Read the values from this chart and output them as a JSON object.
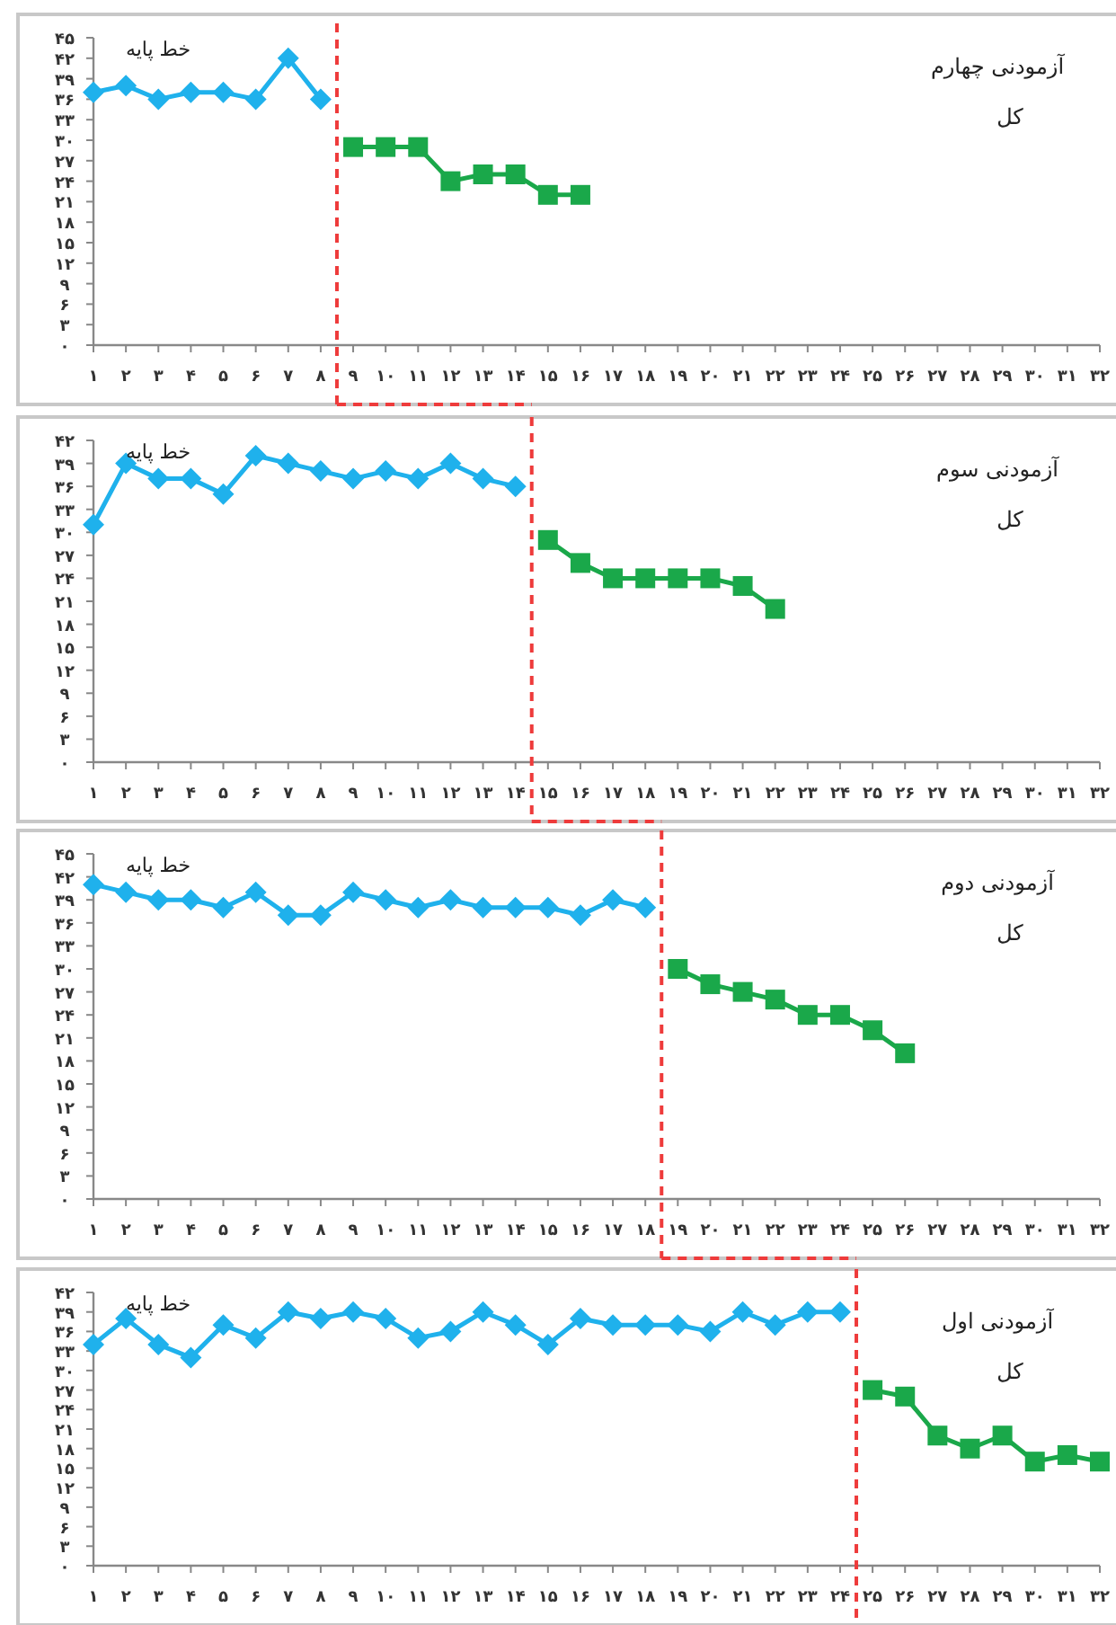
{
  "chart_data": [
    {
      "type": "line",
      "title": "آزمودنی چهارم",
      "subtitle": "کل",
      "annotations": [
        "خط پایه"
      ],
      "xlim": [
        1,
        32
      ],
      "ylim": [
        0,
        45
      ],
      "xticks": [
        {
          "value": 1,
          "label": "۱"
        },
        {
          "value": 2,
          "label": "۲"
        },
        {
          "value": 3,
          "label": "۳"
        },
        {
          "value": 4,
          "label": "۴"
        },
        {
          "value": 5,
          "label": "۵"
        },
        {
          "value": 6,
          "label": "۶"
        },
        {
          "value": 7,
          "label": "۷"
        },
        {
          "value": 8,
          "label": "۸"
        },
        {
          "value": 9,
          "label": "۹"
        },
        {
          "value": 10,
          "label": "۱۰"
        },
        {
          "value": 11,
          "label": "۱۱"
        },
        {
          "value": 12,
          "label": "۱۲"
        },
        {
          "value": 13,
          "label": "۱۳"
        },
        {
          "value": 14,
          "label": "۱۴"
        },
        {
          "value": 15,
          "label": "۱۵"
        },
        {
          "value": 16,
          "label": "۱۶"
        },
        {
          "value": 17,
          "label": "۱۷"
        },
        {
          "value": 18,
          "label": "۱۸"
        },
        {
          "value": 19,
          "label": "۱۹"
        },
        {
          "value": 20,
          "label": "۲۰"
        },
        {
          "value": 21,
          "label": "۲۱"
        },
        {
          "value": 22,
          "label": "۲۲"
        },
        {
          "value": 23,
          "label": "۲۳"
        },
        {
          "value": 24,
          "label": "۲۴"
        },
        {
          "value": 25,
          "label": "۲۵"
        },
        {
          "value": 26,
          "label": "۲۶"
        },
        {
          "value": 27,
          "label": "۲۷"
        },
        {
          "value": 28,
          "label": "۲۸"
        },
        {
          "value": 29,
          "label": "۲۹"
        },
        {
          "value": 30,
          "label": "۳۰"
        },
        {
          "value": 31,
          "label": "۳۱"
        },
        {
          "value": 32,
          "label": "۳۲"
        }
      ],
      "yticks": [
        {
          "value": 0,
          "label": "۰"
        },
        {
          "value": 3,
          "label": "۳"
        },
        {
          "value": 6,
          "label": "۶"
        },
        {
          "value": 9,
          "label": "۹"
        },
        {
          "value": 12,
          "label": "۱۲"
        },
        {
          "value": 15,
          "label": "۱۵"
        },
        {
          "value": 18,
          "label": "۱۸"
        },
        {
          "value": 21,
          "label": "۲۱"
        },
        {
          "value": 24,
          "label": "۲۴"
        },
        {
          "value": 27,
          "label": "۲۷"
        },
        {
          "value": 30,
          "label": "۳۰"
        },
        {
          "value": 33,
          "label": "۳۳"
        },
        {
          "value": 36,
          "label": "۳۶"
        },
        {
          "value": 39,
          "label": "۳۹"
        },
        {
          "value": 42,
          "label": "۴۲"
        },
        {
          "value": 45,
          "label": "۴۵"
        }
      ],
      "series": [
        {
          "color": "#1fb1ec",
          "marker": "diamond",
          "x": [
            1,
            2,
            3,
            4,
            5,
            6,
            7,
            8
          ],
          "values": [
            37,
            38,
            36,
            37,
            37,
            36,
            42,
            36
          ]
        },
        {
          "color": "#1aa84a",
          "marker": "square",
          "x": [
            9,
            10,
            11,
            12,
            13,
            14,
            15,
            16
          ],
          "values": [
            29,
            29,
            29,
            24,
            25,
            25,
            22,
            22
          ]
        }
      ],
      "ref_lines": [
        {
          "axis": "x",
          "value": 8.5,
          "color": "#ee3b3b",
          "line_style": "dashed"
        }
      ],
      "grid": false
    },
    {
      "type": "line",
      "title": "آزمودنی سوم",
      "subtitle": "کل",
      "annotations": [
        "خط پایه"
      ],
      "xlim": [
        1,
        32
      ],
      "ylim": [
        0,
        42
      ],
      "xticks": [
        {
          "value": 1,
          "label": "۱"
        },
        {
          "value": 2,
          "label": "۲"
        },
        {
          "value": 3,
          "label": "۳"
        },
        {
          "value": 4,
          "label": "۴"
        },
        {
          "value": 5,
          "label": "۵"
        },
        {
          "value": 6,
          "label": "۶"
        },
        {
          "value": 7,
          "label": "۷"
        },
        {
          "value": 8,
          "label": "۸"
        },
        {
          "value": 9,
          "label": "۹"
        },
        {
          "value": 10,
          "label": "۱۰"
        },
        {
          "value": 11,
          "label": "۱۱"
        },
        {
          "value": 12,
          "label": "۱۲"
        },
        {
          "value": 13,
          "label": "۱۳"
        },
        {
          "value": 14,
          "label": "۱۴"
        },
        {
          "value": 15,
          "label": "۱۵"
        },
        {
          "value": 16,
          "label": "۱۶"
        },
        {
          "value": 17,
          "label": "۱۷"
        },
        {
          "value": 18,
          "label": "۱۸"
        },
        {
          "value": 19,
          "label": "۱۹"
        },
        {
          "value": 20,
          "label": "۲۰"
        },
        {
          "value": 21,
          "label": "۲۱"
        },
        {
          "value": 22,
          "label": "۲۲"
        },
        {
          "value": 23,
          "label": "۲۳"
        },
        {
          "value": 24,
          "label": "۲۴"
        },
        {
          "value": 25,
          "label": "۲۵"
        },
        {
          "value": 26,
          "label": "۲۶"
        },
        {
          "value": 27,
          "label": "۲۷"
        },
        {
          "value": 28,
          "label": "۲۸"
        },
        {
          "value": 29,
          "label": "۲۹"
        },
        {
          "value": 30,
          "label": "۳۰"
        },
        {
          "value": 31,
          "label": "۳۱"
        },
        {
          "value": 32,
          "label": "۳۲"
        }
      ],
      "yticks": [
        {
          "value": 0,
          "label": "۰"
        },
        {
          "value": 3,
          "label": "۳"
        },
        {
          "value": 6,
          "label": "۶"
        },
        {
          "value": 9,
          "label": "۹"
        },
        {
          "value": 12,
          "label": "۱۲"
        },
        {
          "value": 15,
          "label": "۱۵"
        },
        {
          "value": 18,
          "label": "۱۸"
        },
        {
          "value": 21,
          "label": "۲۱"
        },
        {
          "value": 24,
          "label": "۲۴"
        },
        {
          "value": 27,
          "label": "۲۷"
        },
        {
          "value": 30,
          "label": "۳۰"
        },
        {
          "value": 33,
          "label": "۳۳"
        },
        {
          "value": 36,
          "label": "۳۶"
        },
        {
          "value": 39,
          "label": "۳۹"
        },
        {
          "value": 42,
          "label": "۴۲"
        }
      ],
      "series": [
        {
          "color": "#1fb1ec",
          "marker": "diamond",
          "x": [
            1,
            2,
            3,
            4,
            5,
            6,
            7,
            8,
            9,
            10,
            11,
            12,
            13,
            14
          ],
          "values": [
            31,
            39,
            37,
            37,
            35,
            40,
            39,
            38,
            37,
            38,
            37,
            39,
            37,
            36
          ]
        },
        {
          "color": "#1aa84a",
          "marker": "square",
          "x": [
            15,
            16,
            17,
            18,
            19,
            20,
            21,
            22
          ],
          "values": [
            29,
            26,
            24,
            24,
            24,
            24,
            23,
            20
          ]
        }
      ],
      "ref_lines": [
        {
          "axis": "x",
          "value": 14.5,
          "color": "#ee3b3b",
          "line_style": "dashed"
        }
      ],
      "grid": false
    },
    {
      "type": "line",
      "title": "آزمودنی دوم",
      "subtitle": "کل",
      "annotations": [
        "خط پایه"
      ],
      "xlim": [
        1,
        32
      ],
      "ylim": [
        0,
        45
      ],
      "xticks": [
        {
          "value": 1,
          "label": "۱"
        },
        {
          "value": 2,
          "label": "۲"
        },
        {
          "value": 3,
          "label": "۳"
        },
        {
          "value": 4,
          "label": "۴"
        },
        {
          "value": 5,
          "label": "۵"
        },
        {
          "value": 6,
          "label": "۶"
        },
        {
          "value": 7,
          "label": "۷"
        },
        {
          "value": 8,
          "label": "۸"
        },
        {
          "value": 9,
          "label": "۹"
        },
        {
          "value": 10,
          "label": "۱۰"
        },
        {
          "value": 11,
          "label": "۱۱"
        },
        {
          "value": 12,
          "label": "۱۲"
        },
        {
          "value": 13,
          "label": "۱۳"
        },
        {
          "value": 14,
          "label": "۱۴"
        },
        {
          "value": 15,
          "label": "۱۵"
        },
        {
          "value": 16,
          "label": "۱۶"
        },
        {
          "value": 17,
          "label": "۱۷"
        },
        {
          "value": 18,
          "label": "۱۸"
        },
        {
          "value": 19,
          "label": "۱۹"
        },
        {
          "value": 20,
          "label": "۲۰"
        },
        {
          "value": 21,
          "label": "۲۱"
        },
        {
          "value": 22,
          "label": "۲۲"
        },
        {
          "value": 23,
          "label": "۲۳"
        },
        {
          "value": 24,
          "label": "۲۴"
        },
        {
          "value": 25,
          "label": "۲۵"
        },
        {
          "value": 26,
          "label": "۲۶"
        },
        {
          "value": 27,
          "label": "۲۷"
        },
        {
          "value": 28,
          "label": "۲۸"
        },
        {
          "value": 29,
          "label": "۲۹"
        },
        {
          "value": 30,
          "label": "۳۰"
        },
        {
          "value": 31,
          "label": "۳۱"
        },
        {
          "value": 32,
          "label": "۳۲"
        }
      ],
      "yticks": [
        {
          "value": 0,
          "label": "۰"
        },
        {
          "value": 3,
          "label": "۳"
        },
        {
          "value": 6,
          "label": "۶"
        },
        {
          "value": 9,
          "label": "۹"
        },
        {
          "value": 12,
          "label": "۱۲"
        },
        {
          "value": 15,
          "label": "۱۵"
        },
        {
          "value": 18,
          "label": "۱۸"
        },
        {
          "value": 21,
          "label": "۲۱"
        },
        {
          "value": 24,
          "label": "۲۴"
        },
        {
          "value": 27,
          "label": "۲۷"
        },
        {
          "value": 30,
          "label": "۳۰"
        },
        {
          "value": 33,
          "label": "۳۳"
        },
        {
          "value": 36,
          "label": "۳۶"
        },
        {
          "value": 39,
          "label": "۳۹"
        },
        {
          "value": 42,
          "label": "۴۲"
        },
        {
          "value": 45,
          "label": "۴۵"
        }
      ],
      "series": [
        {
          "color": "#1fb1ec",
          "marker": "diamond",
          "x": [
            1,
            2,
            3,
            4,
            5,
            6,
            7,
            8,
            9,
            10,
            11,
            12,
            13,
            14,
            15,
            16,
            17,
            18
          ],
          "values": [
            41,
            40,
            39,
            39,
            38,
            40,
            37,
            37,
            40,
            39,
            38,
            39,
            38,
            38,
            38,
            37,
            39,
            38
          ]
        },
        {
          "color": "#1aa84a",
          "marker": "square",
          "x": [
            19,
            20,
            21,
            22,
            23,
            24,
            25,
            26
          ],
          "values": [
            30,
            28,
            27,
            26,
            24,
            24,
            22,
            19
          ]
        }
      ],
      "ref_lines": [
        {
          "axis": "x",
          "value": 18.5,
          "color": "#ee3b3b",
          "line_style": "dashed"
        }
      ],
      "grid": false
    },
    {
      "type": "line",
      "title": "آزمودنی اول",
      "subtitle": "کل",
      "annotations": [
        "خط پایه"
      ],
      "xlim": [
        1,
        32
      ],
      "ylim": [
        0,
        42
      ],
      "xticks": [
        {
          "value": 1,
          "label": "۱"
        },
        {
          "value": 2,
          "label": "۲"
        },
        {
          "value": 3,
          "label": "۳"
        },
        {
          "value": 4,
          "label": "۴"
        },
        {
          "value": 5,
          "label": "۵"
        },
        {
          "value": 6,
          "label": "۶"
        },
        {
          "value": 7,
          "label": "۷"
        },
        {
          "value": 8,
          "label": "۸"
        },
        {
          "value": 9,
          "label": "۹"
        },
        {
          "value": 10,
          "label": "۱۰"
        },
        {
          "value": 11,
          "label": "۱۱"
        },
        {
          "value": 12,
          "label": "۱۲"
        },
        {
          "value": 13,
          "label": "۱۳"
        },
        {
          "value": 14,
          "label": "۱۴"
        },
        {
          "value": 15,
          "label": "۱۵"
        },
        {
          "value": 16,
          "label": "۱۶"
        },
        {
          "value": 17,
          "label": "۱۷"
        },
        {
          "value": 18,
          "label": "۱۸"
        },
        {
          "value": 19,
          "label": "۱۹"
        },
        {
          "value": 20,
          "label": "۲۰"
        },
        {
          "value": 21,
          "label": "۲۱"
        },
        {
          "value": 22,
          "label": "۲۲"
        },
        {
          "value": 23,
          "label": "۲۳"
        },
        {
          "value": 24,
          "label": "۲۴"
        },
        {
          "value": 25,
          "label": "۲۵"
        },
        {
          "value": 26,
          "label": "۲۶"
        },
        {
          "value": 27,
          "label": "۲۷"
        },
        {
          "value": 28,
          "label": "۲۸"
        },
        {
          "value": 29,
          "label": "۲۹"
        },
        {
          "value": 30,
          "label": "۳۰"
        },
        {
          "value": 31,
          "label": "۳۱"
        },
        {
          "value": 32,
          "label": "۳۲"
        }
      ],
      "yticks": [
        {
          "value": 0,
          "label": "۰"
        },
        {
          "value": 3,
          "label": "۳"
        },
        {
          "value": 6,
          "label": "۶"
        },
        {
          "value": 9,
          "label": "۹"
        },
        {
          "value": 12,
          "label": "۱۲"
        },
        {
          "value": 15,
          "label": "۱۵"
        },
        {
          "value": 18,
          "label": "۱۸"
        },
        {
          "value": 21,
          "label": "۲۱"
        },
        {
          "value": 24,
          "label": "۲۴"
        },
        {
          "value": 27,
          "label": "۲۷"
        },
        {
          "value": 30,
          "label": "۳۰"
        },
        {
          "value": 33,
          "label": "۳۳"
        },
        {
          "value": 36,
          "label": "۳۶"
        },
        {
          "value": 39,
          "label": "۳۹"
        },
        {
          "value": 42,
          "label": "۴۲"
        }
      ],
      "series": [
        {
          "color": "#1fb1ec",
          "marker": "diamond",
          "x": [
            1,
            2,
            3,
            4,
            5,
            6,
            7,
            8,
            9,
            10,
            11,
            12,
            13,
            14,
            15,
            16,
            17,
            18,
            19,
            20,
            21,
            22,
            23,
            24
          ],
          "values": [
            34,
            38,
            34,
            32,
            37,
            35,
            39,
            38,
            39,
            38,
            35,
            36,
            39,
            37,
            34,
            38,
            37,
            37,
            37,
            36,
            39,
            37,
            39,
            39
          ]
        },
        {
          "color": "#1aa84a",
          "marker": "square",
          "x": [
            25,
            26,
            27,
            28,
            29,
            30,
            31,
            32
          ],
          "values": [
            27,
            26,
            20,
            18,
            20,
            16,
            17,
            16
          ]
        }
      ],
      "ref_lines": [
        {
          "axis": "x",
          "value": 24.5,
          "color": "#ee3b3b",
          "line_style": "dashed"
        }
      ],
      "grid": false
    }
  ]
}
